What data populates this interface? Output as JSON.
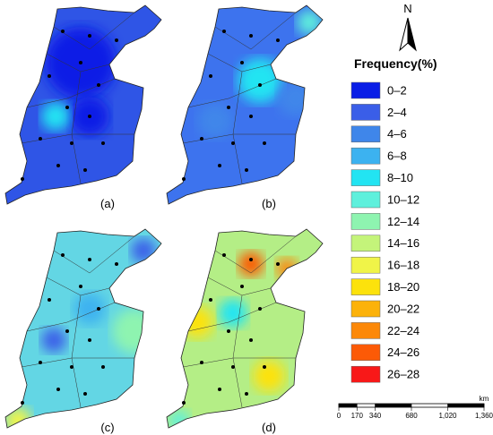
{
  "panels": [
    {
      "label": "(a)",
      "color": "#2f55e6"
    },
    {
      "label": "(b)",
      "color": "#3d73ee"
    },
    {
      "label": "(c)",
      "color": "#63d6e4"
    },
    {
      "label": "(d)",
      "color": "#b4ee86"
    }
  ],
  "north": "N",
  "legend": {
    "title": "Frequency(%)",
    "items": [
      {
        "label": "0–2",
        "color": "#0a1ee6"
      },
      {
        "label": "2–4",
        "color": "#3a5ee8"
      },
      {
        "label": "4–6",
        "color": "#3f86ea"
      },
      {
        "label": "6–8",
        "color": "#3cb2f0"
      },
      {
        "label": "8–10",
        "color": "#22e4f2"
      },
      {
        "label": "10–12",
        "color": "#5ef0dc"
      },
      {
        "label": "12–14",
        "color": "#8ef4b0"
      },
      {
        "label": "14–16",
        "color": "#c4f47a"
      },
      {
        "label": "16–18",
        "color": "#f0f448"
      },
      {
        "label": "18–20",
        "color": "#fce20c"
      },
      {
        "label": "20–22",
        "color": "#fcb20a"
      },
      {
        "label": "22–24",
        "color": "#fc8808"
      },
      {
        "label": "24–26",
        "color": "#fc5a06"
      },
      {
        "label": "26–28",
        "color": "#f81818"
      }
    ]
  },
  "scale": {
    "unit": "km",
    "ticks": [
      {
        "value": 0,
        "label": "0"
      },
      {
        "value": 170,
        "label": "170"
      },
      {
        "value": 340,
        "label": "340"
      },
      {
        "value": 680,
        "label": "680"
      },
      {
        "value": 1020,
        "label": "1,020"
      },
      {
        "value": 1360,
        "label": "1,360"
      }
    ]
  }
}
